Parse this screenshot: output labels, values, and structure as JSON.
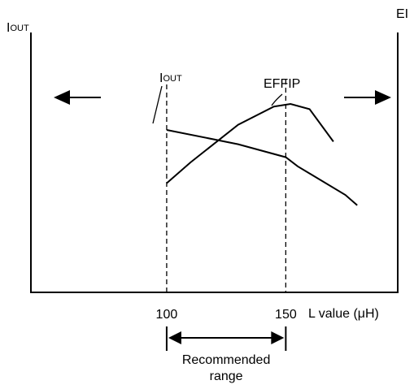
{
  "chart_data": {
    "type": "line",
    "y_left_label": {
      "main": "I",
      "sub": "OUT"
    },
    "y_right_label": "EI",
    "xlabel": "L value (μH)",
    "x_ticks": [
      {
        "value": 100,
        "label": "100"
      },
      {
        "value": 150,
        "label": "150"
      }
    ],
    "xlim": [
      43,
      197
    ],
    "ylim": [
      0,
      100
    ],
    "series": [
      {
        "name_main": "I",
        "name_sub": "OUT",
        "points": [
          [
            100,
            62.5
          ],
          [
            130,
            57
          ],
          [
            150,
            52
          ],
          [
            155,
            48.5
          ],
          [
            175,
            37.5
          ],
          [
            180,
            33.5
          ]
        ]
      },
      {
        "name": "EFFIP",
        "points": [
          [
            100,
            42
          ],
          [
            110,
            50
          ],
          [
            130,
            64.5
          ],
          [
            145,
            71.5
          ],
          [
            152,
            72.5
          ],
          [
            160,
            70.5
          ],
          [
            170,
            58
          ]
        ]
      }
    ],
    "recommended_range": {
      "from": 100,
      "to": 150,
      "line1": "Recommended",
      "line2": "range"
    },
    "colors": {
      "line": "#000000",
      "background": "#ffffff"
    },
    "arrows": [
      "left-arrow",
      "right-arrow"
    ]
  }
}
